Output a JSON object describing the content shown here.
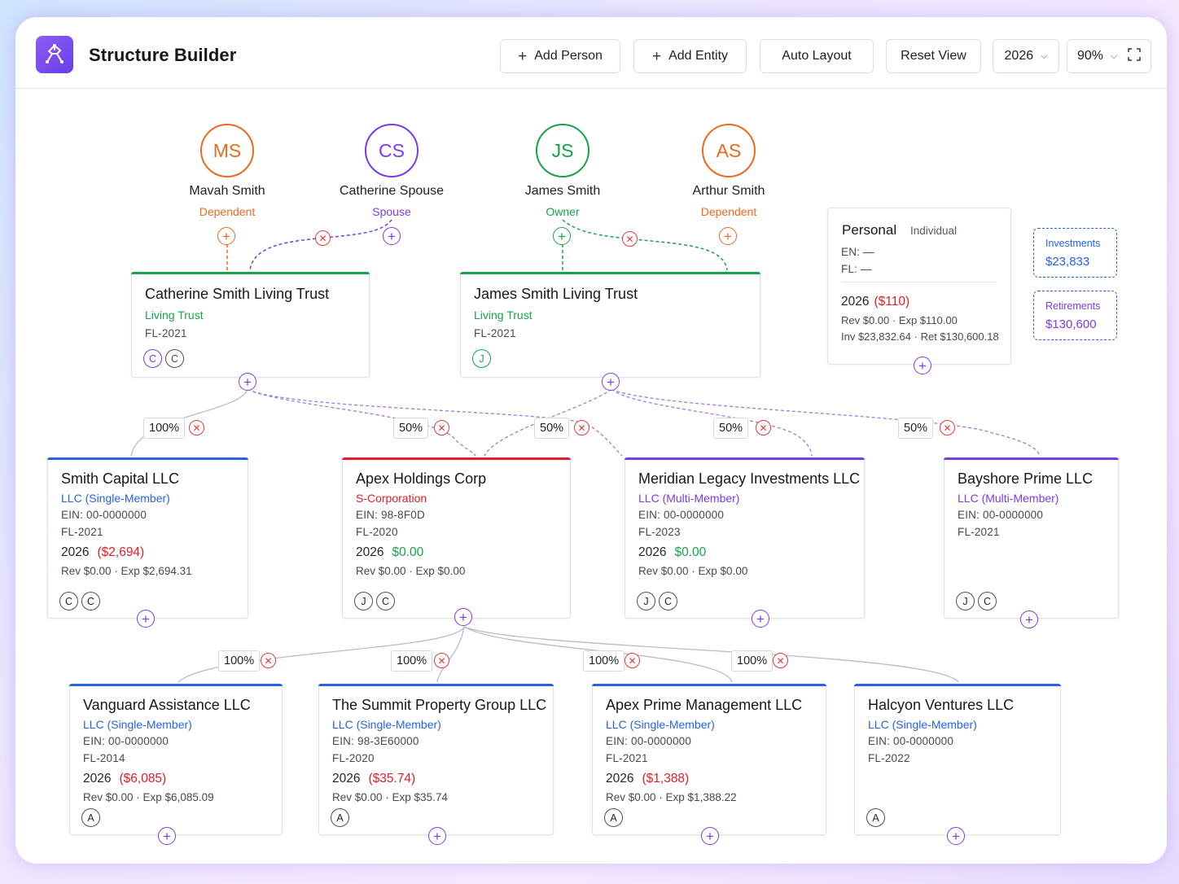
{
  "app": {
    "title": "Structure Builder"
  },
  "toolbar": {
    "add_person": "Add Person",
    "add_entity": "Add Entity",
    "auto_layout": "Auto Layout",
    "reset_view": "Reset View",
    "year": "2026",
    "zoom": "90%"
  },
  "people": [
    {
      "initials": "MS",
      "name": "Mavah Smith",
      "role": "Dependent",
      "color": "#ea6a1f"
    },
    {
      "initials": "CS",
      "name": "Catherine Spouse",
      "role": "Spouse",
      "color": "#7c3aed"
    },
    {
      "initials": "JS",
      "name": "James Smith",
      "role": "Owner",
      "color": "#16a34a"
    },
    {
      "initials": "AS",
      "name": "Arthur Smith",
      "role": "Dependent",
      "color": "#ea6a1f"
    }
  ],
  "trusts": [
    {
      "title": "Catherine Smith Living Trust",
      "type": "Living Trust",
      "state": "FL-2021",
      "chips": [
        "C",
        "C"
      ]
    },
    {
      "title": "James Smith Living Trust",
      "type": "Living Trust",
      "state": "FL-2021",
      "chips": [
        "J"
      ]
    }
  ],
  "personal": {
    "title": "Personal",
    "kind": "Individual",
    "en": "EN: —",
    "fl": "FL: —",
    "year": "2026",
    "amount": "($110)",
    "rev_exp": "Rev $0.00 · Exp $110.00",
    "inv_ret": "Inv $23,832.64 · Ret $130,600.18"
  },
  "side_boxes": {
    "investments_label": "Investments",
    "investments_value": "$23,833",
    "retirements_label": "Retirements",
    "retirements_value": "$130,600"
  },
  "ownership_labels": {
    "l1": [
      "100%",
      "50%",
      "50%",
      "50%",
      "50%"
    ],
    "l2": [
      "100%",
      "100%",
      "100%",
      "100%"
    ]
  },
  "entities_mid": [
    {
      "title": "Smith Capital LLC",
      "type": "LLC (Single-Member)",
      "ein": "EIN: 00-0000000",
      "state": "FL-2021",
      "year": "2026",
      "amount": "($2,694)",
      "rev_exp": "Rev $0.00 · Exp $2,694.31",
      "chips": [
        "C",
        "C"
      ]
    },
    {
      "title": "Apex Holdings Corp",
      "type": "S-Corporation",
      "ein": "EIN: 98-8F0D",
      "state": "FL-2020",
      "year": "2026",
      "amount": "$0.00",
      "rev_exp": "Rev $0.00 · Exp $0.00",
      "chips": [
        "J",
        "C"
      ]
    },
    {
      "title": "Meridian Legacy Investments LLC",
      "type": "LLC (Multi-Member)",
      "ein": "EIN: 00-0000000",
      "state": "FL-2023",
      "year": "2026",
      "amount": "$0.00",
      "rev_exp": "Rev $0.00 · Exp $0.00",
      "chips": [
        "J",
        "C"
      ]
    },
    {
      "title": "Bayshore Prime LLC",
      "type": "LLC (Multi-Member)",
      "ein": "EIN: 00-0000000",
      "state": "FL-2021",
      "chips": [
        "J",
        "C"
      ]
    }
  ],
  "entities_bottom": [
    {
      "title": "Vanguard Assistance LLC",
      "type": "LLC (Single-Member)",
      "ein": "EIN: 00-0000000",
      "state": "FL-2014",
      "year": "2026",
      "amount": "($6,085)",
      "rev_exp": "Rev $0.00 · Exp $6,085.09",
      "chips": [
        "A"
      ]
    },
    {
      "title": "The Summit Property Group LLC",
      "type": "LLC (Single-Member)",
      "ein": "EIN: 98-3E60000",
      "state": "FL-2020",
      "year": "2026",
      "amount": "($35.74)",
      "rev_exp": "Rev $0.00 · Exp $35.74",
      "chips": [
        "A"
      ]
    },
    {
      "title": "Apex Prime Management LLC",
      "type": "LLC (Single-Member)",
      "ein": "EIN: 00-0000000",
      "state": "FL-2021",
      "year": "2026",
      "amount": "($1,388)",
      "rev_exp": "Rev $0.00 · Exp $1,388.22",
      "chips": [
        "A"
      ]
    },
    {
      "title": "Halcyon Ventures LLC",
      "type": "LLC (Single-Member)",
      "ein": "EIN: 00-0000000",
      "state": "FL-2022",
      "chips": [
        "A"
      ]
    }
  ],
  "colors": {
    "purple": "#7c3aed",
    "green": "#16a34a",
    "orange": "#ea6a1f",
    "blue": "#2563eb",
    "red": "#e11d28",
    "llc_multi": "#7c3aed"
  },
  "icons": [
    "logo-icon",
    "plus-icon",
    "chevron-down-icon",
    "fullscreen-icon",
    "remove-link-icon",
    "add-node-icon"
  ]
}
